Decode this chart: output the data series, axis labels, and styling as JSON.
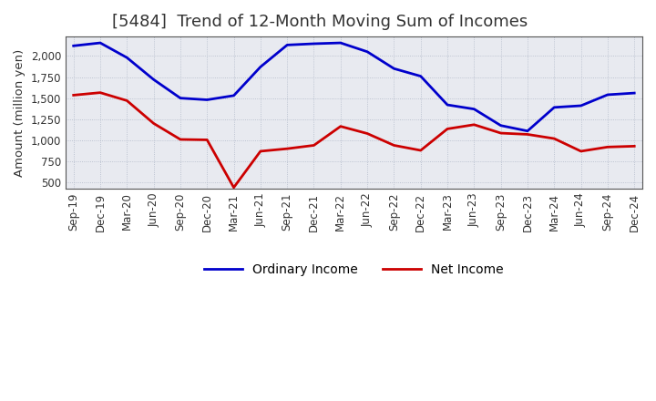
{
  "title": "[5484]  Trend of 12-Month Moving Sum of Incomes",
  "ylabel": "Amount (million yen)",
  "ylim": [
    430,
    2230
  ],
  "yticks": [
    500,
    750,
    1000,
    1250,
    1500,
    1750,
    2000
  ],
  "background_color": "#ffffff",
  "plot_bg_color": "#e8eaf0",
  "grid_color": "#b0b8c8",
  "labels": [
    "Sep-19",
    "Dec-19",
    "Mar-20",
    "Jun-20",
    "Sep-20",
    "Dec-20",
    "Mar-21",
    "Jun-21",
    "Sep-21",
    "Dec-21",
    "Mar-22",
    "Jun-22",
    "Sep-22",
    "Dec-22",
    "Mar-23",
    "Jun-23",
    "Sep-23",
    "Dec-23",
    "Mar-24",
    "Jun-24",
    "Sep-24",
    "Dec-24"
  ],
  "ordinary_income": [
    2120,
    2155,
    1980,
    1720,
    1500,
    1480,
    1530,
    1870,
    2130,
    2145,
    2155,
    2050,
    1850,
    1760,
    1420,
    1370,
    1175,
    1110,
    1390,
    1410,
    1540,
    1560
  ],
  "net_income": [
    1535,
    1565,
    1470,
    1200,
    1010,
    1005,
    440,
    870,
    900,
    940,
    1165,
    1080,
    940,
    880,
    1135,
    1185,
    1085,
    1070,
    1020,
    870,
    920,
    930
  ],
  "ordinary_color": "#0000cc",
  "net_color": "#cc0000",
  "line_width": 2.0,
  "legend_ordinary": "Ordinary Income",
  "legend_net": "Net Income",
  "title_fontsize": 13,
  "title_color": "#333333",
  "tick_fontsize": 8.5,
  "ylabel_fontsize": 9.5
}
